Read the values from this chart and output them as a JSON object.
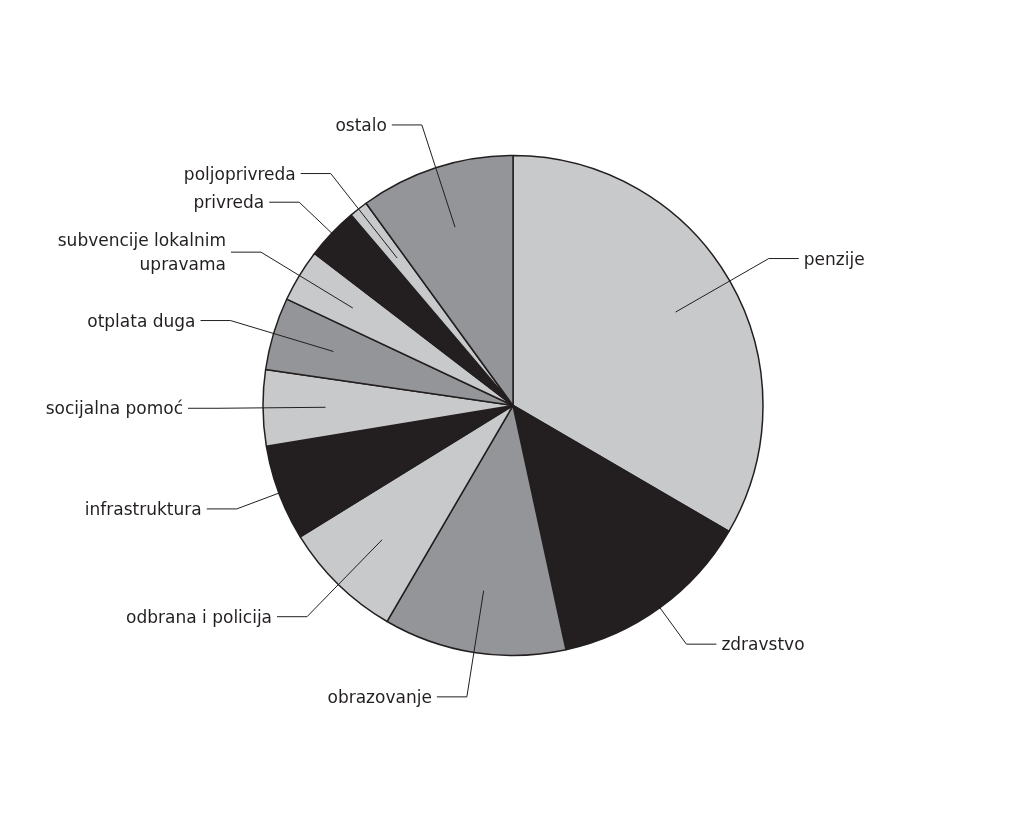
{
  "chart_data": {
    "type": "pie",
    "categories": [
      "penzije",
      "zdravstvo",
      "obrazovanje",
      "odbrana i policija",
      "infrastruktura",
      "socijalna pomoć",
      "otplata duga",
      "subvencije lokalnim upravama",
      "privreda",
      "poljoprivreda",
      "ostalo"
    ],
    "values": [
      33.4,
      13.2,
      11.8,
      7.8,
      6.2,
      4.9,
      4.7,
      3.4,
      3.4,
      1.2,
      10.0
    ],
    "colors": [
      "#c8c9cb",
      "#231f20",
      "#939598",
      "#c8c9cb",
      "#231f20",
      "#c8c9cb",
      "#939598",
      "#c8c9cb",
      "#231f20",
      "#c8c9cb",
      "#939598"
    ]
  }
}
